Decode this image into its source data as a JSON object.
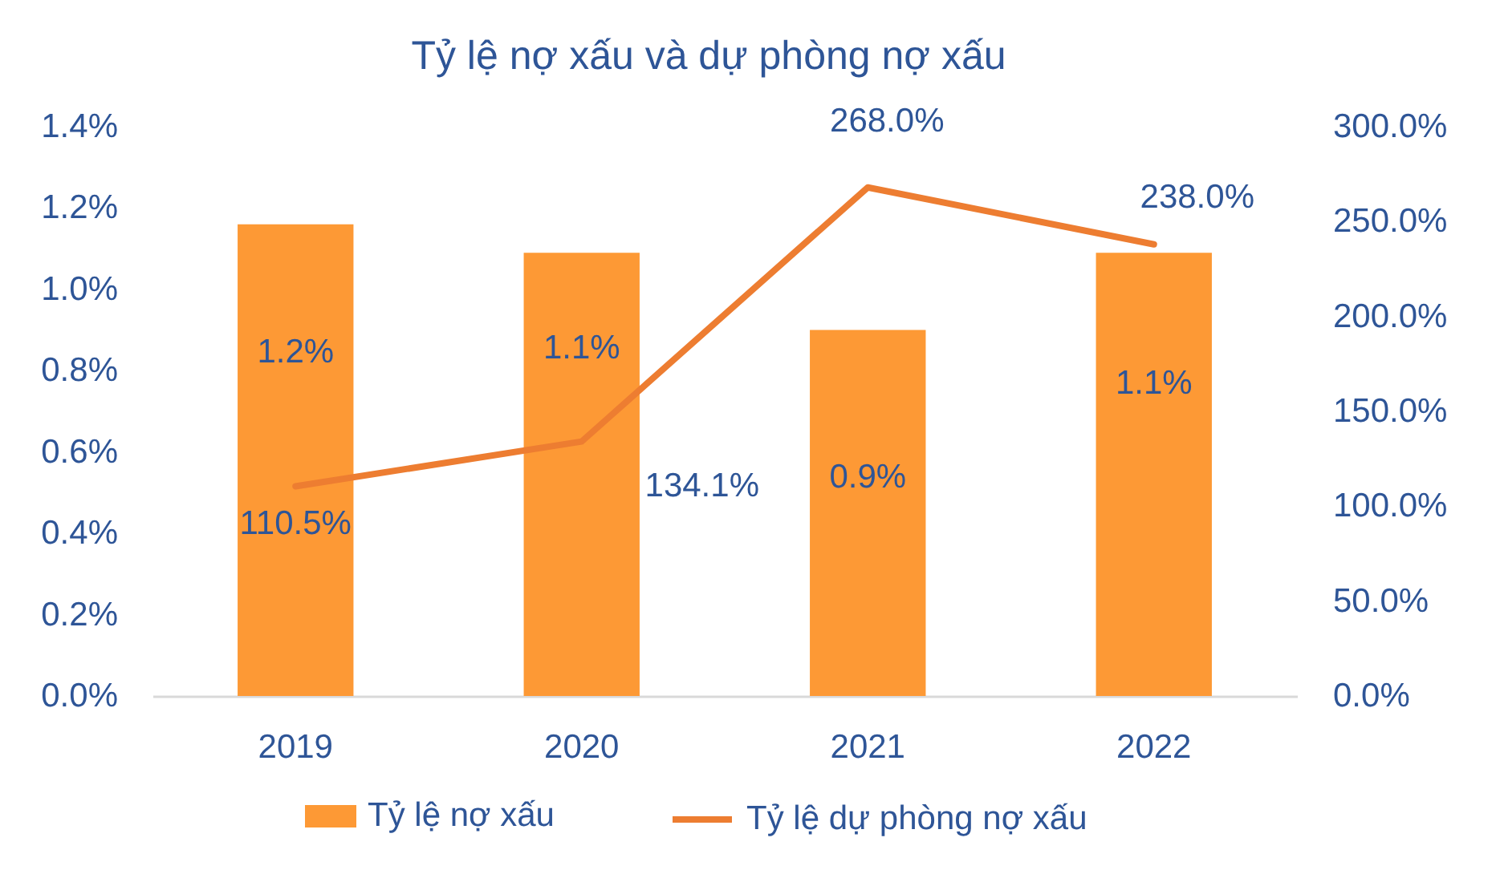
{
  "chart_data": {
    "type": "bar",
    "title": "Tỷ lệ nợ xấu và dự phòng nợ xấu",
    "categories": [
      "2019",
      "2020",
      "2021",
      "2022"
    ],
    "series": [
      {
        "name": "Tỷ lệ nợ xấu",
        "color": "#fd9935",
        "values": [
          1.16,
          1.09,
          0.9,
          1.09
        ],
        "value_labels": [
          "1.2%",
          "1.1%",
          "0.9%",
          "1.1%"
        ]
      },
      {
        "name": "Tỷ lệ dự phòng nợ xấu",
        "type": "line",
        "axis": "y2",
        "color": "#ed7d31",
        "values": [
          110.5,
          134.1,
          268.0,
          238.0
        ],
        "value_labels": [
          "110.5%",
          "134.1%",
          "268.0%",
          "238.0%"
        ]
      }
    ],
    "ylim": [
      0,
      1.4
    ],
    "yticks": [
      {
        "value": 0,
        "label": "0.0%"
      },
      {
        "value": 0.2,
        "label": "0.2%"
      },
      {
        "value": 0.4,
        "label": "0.4%"
      },
      {
        "value": 0.6,
        "label": "0.6%"
      },
      {
        "value": 0.8,
        "label": "0.8%"
      },
      {
        "value": 1.0,
        "label": "1.0%"
      },
      {
        "value": 1.2,
        "label": "1.2%"
      },
      {
        "value": 1.4,
        "label": "1.4%"
      }
    ],
    "y2lim": [
      0,
      300
    ],
    "y2ticks": [
      {
        "value": 0,
        "label": "0.0%"
      },
      {
        "value": 50,
        "label": "50.0%"
      },
      {
        "value": 100,
        "label": "100.0%"
      },
      {
        "value": 150,
        "label": "150.0%"
      },
      {
        "value": 200,
        "label": "200.0%"
      },
      {
        "value": 250,
        "label": "250.0%"
      },
      {
        "value": 300,
        "label": "300.0%"
      }
    ],
    "legend": "bottom"
  }
}
